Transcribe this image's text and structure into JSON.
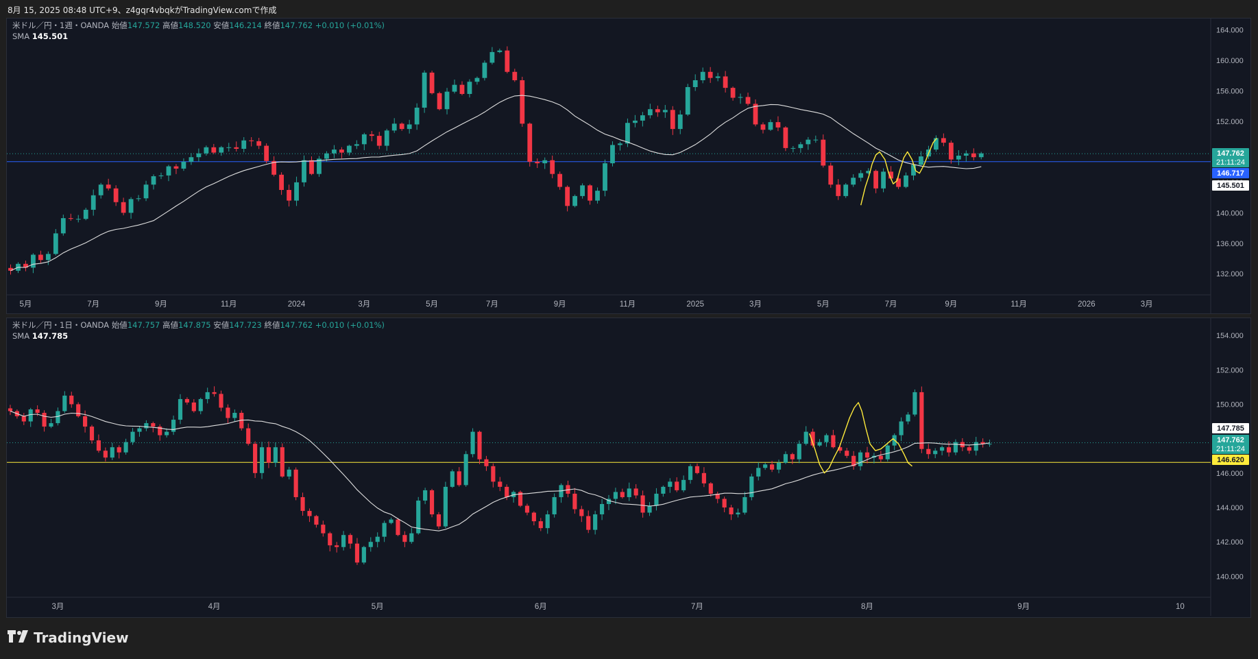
{
  "header": {
    "caption": "8月 15, 2025 08:48 UTC+9、z4gqr4vbqkがTradingView.comで作成"
  },
  "footer": {
    "brand": "TradingView"
  },
  "colors": {
    "up": "#26a69a",
    "down": "#f23645",
    "sma": "#e0e0e0",
    "annotation": "#ffeb3b",
    "bg": "#131722"
  },
  "chart_data": [
    {
      "type": "candlestick",
      "symbol": "米ドル／円・1週・OANDA",
      "ohlc_legend": {
        "open_label": "始値",
        "open": "147.572",
        "high_label": "高値",
        "high": "148.520",
        "low_label": "安値",
        "low": "146.214",
        "close_label": "終値",
        "close": "147.762",
        "change": "+0.010 (+0.01%)"
      },
      "sma_label": "SMA",
      "sma_value": "145.501",
      "ylim": [
        129.5,
        165.5
      ],
      "yticks": [
        "164.000",
        "160.000",
        "156.000",
        "152.000",
        "148.000",
        "144.000",
        "140.000",
        "136.000",
        "132.000"
      ],
      "xticks": [
        {
          "label": "5月",
          "i": 2
        },
        {
          "label": "7月",
          "i": 11
        },
        {
          "label": "9月",
          "i": 20
        },
        {
          "label": "11月",
          "i": 29
        },
        {
          "label": "2024",
          "i": 38
        },
        {
          "label": "3月",
          "i": 47
        },
        {
          "label": "5月",
          "i": 56
        },
        {
          "label": "7月",
          "i": 64
        },
        {
          "label": "9月",
          "i": 73
        },
        {
          "label": "11月",
          "i": 82
        },
        {
          "label": "2025",
          "i": 91
        },
        {
          "label": "3月",
          "i": 99
        },
        {
          "label": "5月",
          "i": 108
        },
        {
          "label": "7月",
          "i": 117
        },
        {
          "label": "9月",
          "i": 125
        },
        {
          "label": "11月",
          "i": 134
        },
        {
          "label": "2026",
          "i": 143
        },
        {
          "label": "3月",
          "i": 151
        }
      ],
      "x_slots": 160,
      "badges": [
        {
          "text": "147.762",
          "sub": "21:11:24",
          "value": 147.762,
          "bg": "#26a69a",
          "fg": "#ffffff"
        },
        {
          "text": "146.717",
          "value": 146.717,
          "bg": "#2962ff",
          "fg": "#ffffff"
        },
        {
          "text": "145.501",
          "value": 145.501,
          "bg": "#ffffff",
          "fg": "#131722"
        }
      ],
      "hline": {
        "value": 146.717,
        "color": "#2962ff"
      },
      "price_line": 147.762,
      "closes": [
        132.4,
        133.3,
        132.8,
        134.5,
        133.8,
        134.6,
        137.3,
        139.3,
        139.2,
        139.2,
        140.4,
        142.3,
        143.7,
        143.2,
        141.4,
        140.0,
        141.8,
        141.9,
        143.7,
        144.8,
        144.9,
        146.1,
        145.8,
        146.7,
        147.3,
        147.8,
        148.6,
        147.9,
        148.6,
        148.6,
        148.4,
        149.5,
        149.4,
        148.8,
        146.8,
        145.0,
        143.0,
        141.6,
        144.0,
        146.9,
        145.1,
        147.1,
        147.8,
        148.3,
        147.9,
        148.8,
        149.0,
        150.3,
        150.1,
        148.8,
        150.8,
        151.7,
        151.0,
        151.6,
        153.8,
        158.4,
        155.7,
        153.6,
        155.9,
        156.8,
        155.6,
        157.2,
        157.7,
        159.7,
        161.1,
        161.3,
        158.5,
        157.4,
        151.7,
        146.7,
        146.5,
        146.9,
        145.1,
        143.4,
        140.9,
        142.2,
        143.6,
        141.6,
        142.9,
        146.5,
        148.9,
        149.1,
        151.8,
        152.1,
        152.8,
        153.6,
        153.2,
        153.5,
        151.0,
        152.9,
        156.5,
        157.4,
        158.5,
        157.7,
        157.9,
        156.4,
        155.1,
        155.2,
        154.3,
        151.6,
        150.9,
        151.9,
        151.2,
        148.5,
        148.5,
        149.0,
        149.6,
        149.6,
        146.2,
        143.7,
        142.2,
        143.7,
        144.6,
        145.2,
        145.5,
        143.2,
        145.4,
        144.5,
        143.4,
        144.9,
        146.3,
        147.4,
        148.3,
        149.8,
        149.2,
        147.0,
        147.5,
        147.8,
        147.3,
        147.8
      ],
      "annotation_a": {
        "start": 113,
        "end": 118,
        "pts": [
          [
            113.0,
            0.0
          ],
          [
            113.6,
            3.8
          ],
          [
            114.1,
            4.7
          ],
          [
            114.5,
            4.1
          ],
          [
            115.0,
            2.5
          ],
          [
            115.5,
            3.0
          ],
          [
            116.2,
            4.7
          ],
          [
            116.7,
            5.3
          ],
          [
            117.3,
            4.5
          ],
          [
            118.0,
            3.0
          ]
        ]
      },
      "annotation_b": {
        "start": 118,
        "end": 130,
        "pts": [
          [
            118.0,
            147.3
          ],
          [
            118.6,
            149.0
          ],
          [
            119.2,
            148.5
          ],
          [
            119.8,
            146.5
          ],
          [
            120.3,
            144.5
          ],
          [
            120.8,
            143.6
          ],
          [
            121.3,
            144.2
          ],
          [
            121.8,
            145.5
          ],
          [
            122.3,
            146.8
          ],
          [
            122.8,
            147.9
          ],
          [
            123.3,
            148.7
          ],
          [
            123.9,
            148.8
          ],
          [
            124.5,
            148.2
          ],
          [
            125.1,
            146.7
          ],
          [
            125.6,
            145.2
          ],
          [
            126.1,
            144.6
          ],
          [
            126.6,
            145.5
          ],
          [
            127.1,
            147.0
          ],
          [
            127.6,
            148.6
          ],
          [
            128.1,
            150.0
          ],
          [
            128.6,
            151.0
          ]
        ]
      }
    },
    {
      "type": "candlestick",
      "symbol": "米ドル／円・1日・OANDA",
      "ohlc_legend": {
        "open_label": "始値",
        "open": "147.757",
        "high_label": "高値",
        "high": "147.875",
        "low_label": "安値",
        "low": "147.723",
        "close_label": "終値",
        "close": "147.762",
        "change": "+0.010 (+0.01%)"
      },
      "sma_label": "SMA",
      "sma_value": "147.785",
      "ylim": [
        138.9,
        155.0
      ],
      "yticks": [
        "154.000",
        "152.000",
        "150.000",
        "148.000",
        "146.000",
        "144.000",
        "142.000",
        "140.000"
      ],
      "xticks": [
        {
          "label": "3月",
          "i": 7
        },
        {
          "label": "4月",
          "i": 30
        },
        {
          "label": "5月",
          "i": 54
        },
        {
          "label": "6月",
          "i": 78
        },
        {
          "label": "7月",
          "i": 101
        },
        {
          "label": "8月",
          "i": 126
        },
        {
          "label": "9月",
          "i": 149
        },
        {
          "label": "10",
          "i": 172
        }
      ],
      "x_slots": 177,
      "badges": [
        {
          "text": "147.785",
          "value": 147.785,
          "bg": "#ffffff",
          "fg": "#131722"
        },
        {
          "text": "147.762",
          "sub": "21:11:24",
          "value": 147.762,
          "bg": "#26a69a",
          "fg": "#ffffff"
        },
        {
          "text": "146.620",
          "value": 146.62,
          "bg": "#ffeb3b",
          "fg": "#131722"
        }
      ],
      "hline": {
        "value": 146.62,
        "color": "#ffeb3b"
      },
      "price_line": 147.762,
      "closes": [
        149.6,
        149.3,
        149.0,
        149.7,
        149.5,
        148.7,
        148.9,
        149.6,
        150.5,
        150.0,
        149.3,
        148.7,
        147.9,
        147.3,
        146.9,
        147.5,
        147.2,
        147.8,
        148.4,
        148.6,
        148.9,
        148.7,
        148.2,
        148.4,
        149.1,
        150.3,
        150.1,
        149.6,
        150.3,
        150.7,
        150.6,
        149.8,
        149.2,
        149.5,
        148.6,
        147.7,
        146.0,
        147.5,
        146.6,
        147.5,
        145.8,
        146.2,
        144.6,
        143.8,
        143.5,
        143.0,
        142.5,
        141.8,
        141.7,
        142.4,
        141.9,
        140.8,
        141.7,
        142.0,
        142.3,
        143.1,
        143.3,
        142.4,
        142.0,
        142.5,
        144.4,
        145.0,
        143.6,
        142.9,
        145.2,
        146.1,
        145.3,
        147.1,
        148.4,
        146.8,
        146.4,
        145.5,
        145.2,
        144.6,
        144.9,
        144.1,
        143.7,
        143.2,
        142.8,
        143.6,
        144.6,
        145.3,
        144.8,
        143.9,
        143.5,
        142.7,
        143.6,
        144.2,
        144.5,
        144.9,
        144.6,
        145.1,
        144.7,
        143.7,
        144.1,
        144.8,
        145.2,
        145.5,
        145.0,
        145.6,
        146.4,
        146.0,
        145.4,
        144.8,
        144.5,
        144.0,
        143.6,
        143.7,
        144.6,
        145.8,
        146.3,
        146.5,
        146.2,
        146.6,
        147.1,
        146.8,
        147.7,
        148.4,
        147.6,
        147.8,
        148.2,
        147.5,
        147.3,
        147.0,
        146.4,
        147.2,
        146.9,
        147.0,
        146.8,
        147.6,
        148.2,
        149.0,
        149.4,
        150.7,
        147.4,
        147.1,
        147.3,
        147.5,
        147.2,
        147.8,
        147.5,
        147.3,
        147.8,
        147.7,
        147.7
      ],
      "annotation_a": {
        "pts": [
          [
            117.5,
            148.3
          ],
          [
            118.3,
            147.4
          ],
          [
            119.0,
            146.5
          ],
          [
            119.7,
            146.0
          ],
          [
            120.4,
            146.3
          ],
          [
            121.1,
            146.9
          ],
          [
            121.9,
            147.5
          ],
          [
            122.6,
            148.3
          ],
          [
            123.4,
            149.2
          ],
          [
            124.1,
            149.8
          ],
          [
            124.7,
            150.1
          ],
          [
            125.2,
            149.6
          ],
          [
            125.8,
            148.6
          ],
          [
            126.4,
            147.7
          ],
          [
            127.2,
            147.3
          ],
          [
            128.0,
            147.4
          ],
          [
            128.9,
            147.7
          ],
          [
            129.8,
            148.0
          ],
          [
            130.6,
            147.7
          ],
          [
            131.4,
            147.1
          ],
          [
            132.0,
            146.6
          ],
          [
            132.6,
            146.4
          ]
        ]
      }
    }
  ]
}
